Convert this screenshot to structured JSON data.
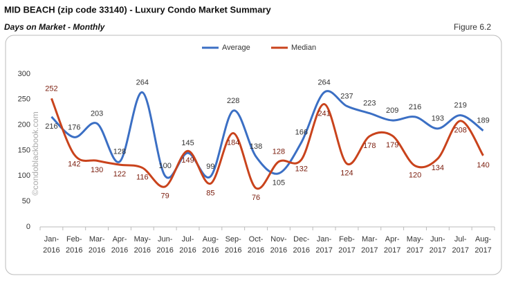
{
  "chart_data": {
    "type": "line",
    "title": "MID BEACH (zip code 33140) - Luxury Condo Market Summary",
    "subtitle": "Days on Market - Monthly",
    "figure_label": "Figure 6.2",
    "watermark": "©condoblackbook.com",
    "categories": [
      "Jan-2016",
      "Feb-2016",
      "Mar-2016",
      "Apr-2016",
      "May-2016",
      "Jun-2016",
      "Jul-2016",
      "Aug-2016",
      "Sep-2016",
      "Oct-2016",
      "Nov-2016",
      "Dec-2016",
      "Jan-2017",
      "Feb-2017",
      "Mar-2017",
      "Apr-2017",
      "May-2017",
      "Jun-2017",
      "Jul-2017",
      "Aug-2017"
    ],
    "series": [
      {
        "name": "Average",
        "color": "#3b6fc4",
        "values": [
          216,
          176,
          203,
          128,
          264,
          100,
          145,
          99,
          228,
          138,
          105,
          166,
          264,
          237,
          223,
          209,
          216,
          193,
          219,
          189
        ]
      },
      {
        "name": "Median",
        "color": "#c9431c",
        "values": [
          252,
          142,
          130,
          122,
          116,
          79,
          149,
          85,
          184,
          76,
          128,
          132,
          241,
          124,
          178,
          179,
          120,
          134,
          208,
          140
        ]
      }
    ],
    "ylim": [
      0,
      300
    ],
    "yticks": [
      0,
      50,
      100,
      150,
      200,
      250,
      300
    ],
    "legend": "top"
  }
}
